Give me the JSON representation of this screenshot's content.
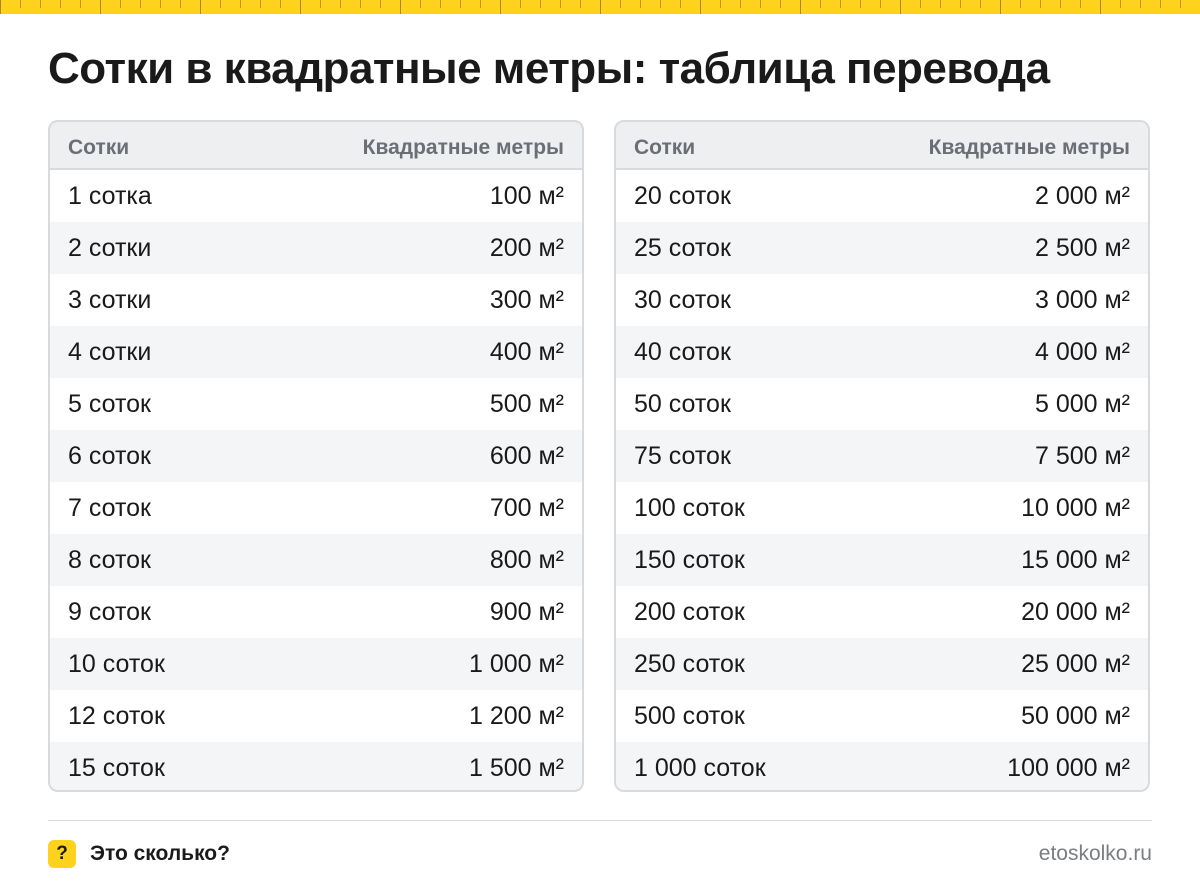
{
  "title": "Сотки в квадратные метры: таблица перевода",
  "colors": {
    "accent": "#ffd21e",
    "header_bg": "#eeeff1",
    "row_alt": "#f4f5f6",
    "border": "#d9dade"
  },
  "tables": [
    {
      "headers": [
        "Сотки",
        "Квадратные метры"
      ],
      "rows": [
        [
          "1 сотка",
          "100 м²"
        ],
        [
          "2 сотки",
          "200 м²"
        ],
        [
          "3 сотки",
          "300 м²"
        ],
        [
          "4 сотки",
          "400 м²"
        ],
        [
          "5 соток",
          "500 м²"
        ],
        [
          "6 соток",
          "600 м²"
        ],
        [
          "7 соток",
          "700 м²"
        ],
        [
          "8 соток",
          "800 м²"
        ],
        [
          "9 соток",
          "900 м²"
        ],
        [
          "10 соток",
          "1 000 м²"
        ],
        [
          "12 соток",
          "1 200 м²"
        ],
        [
          "15 соток",
          "1 500 м²"
        ]
      ]
    },
    {
      "headers": [
        "Сотки",
        "Квадратные метры"
      ],
      "rows": [
        [
          "20 соток",
          "2 000 м²"
        ],
        [
          "25 соток",
          "2 500 м²"
        ],
        [
          "30 соток",
          "3 000 м²"
        ],
        [
          "40 соток",
          "4 000 м²"
        ],
        [
          "50 соток",
          "5 000 м²"
        ],
        [
          "75 соток",
          "7 500 м²"
        ],
        [
          "100 соток",
          "10 000 м²"
        ],
        [
          "150 соток",
          "15 000 м²"
        ],
        [
          "200 соток",
          "20 000 м²"
        ],
        [
          "250 соток",
          "25 000 м²"
        ],
        [
          "500 соток",
          "50 000 м²"
        ],
        [
          "1 000 соток",
          "100 000 м²"
        ]
      ]
    }
  ],
  "footer": {
    "badge_icon": "question-mark-icon",
    "badge_glyph": "?",
    "brand": "Это сколько?",
    "site": "etoskolko.ru"
  }
}
